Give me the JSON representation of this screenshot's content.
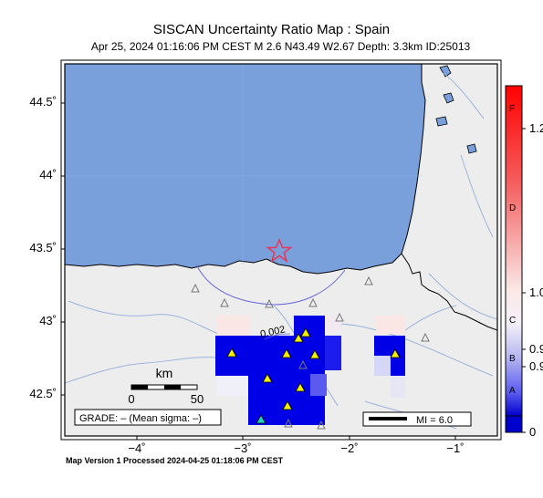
{
  "header": {
    "title": "SISCAN Uncertainty Ratio Map : Spain",
    "subtitle": "Apr 25, 2024 01:16:06 PM CEST   M 2.6   N43.49 W2.67   Depth: 3.3km   ID:25013"
  },
  "axes": {
    "lat_ticks": [
      "44.5˚",
      "44˚",
      "43.5˚",
      "43˚",
      "42.5˚"
    ],
    "lon_ticks": [
      "−4˚",
      "−3˚",
      "−2˚",
      "−1˚"
    ]
  },
  "colorbar": {
    "grades": [
      "F",
      "D",
      "C",
      "B",
      "A"
    ],
    "ticks": [
      "1.2",
      "1.0",
      "0.9",
      "0.9",
      "0"
    ],
    "top_color": "#ff0000",
    "bottom_color": "#0000cc"
  },
  "scale_bar": {
    "unit": "km",
    "start": "0",
    "end": "50"
  },
  "grade_box": "GRADE: – (Mean sigma: –)",
  "mi_legend": "MI = 6.0",
  "contour_label": "0.002",
  "footer": "Map Version 1 Processed 2024-04-25 01:18:06 PM CEST",
  "colors": {
    "sea": "#7aa0dc",
    "land": "#ededed",
    "river": "#9ab4dc",
    "epicenter": "#e23a5c",
    "station_yellow": "#f4f000",
    "station_cyan": "#22d4c0"
  }
}
